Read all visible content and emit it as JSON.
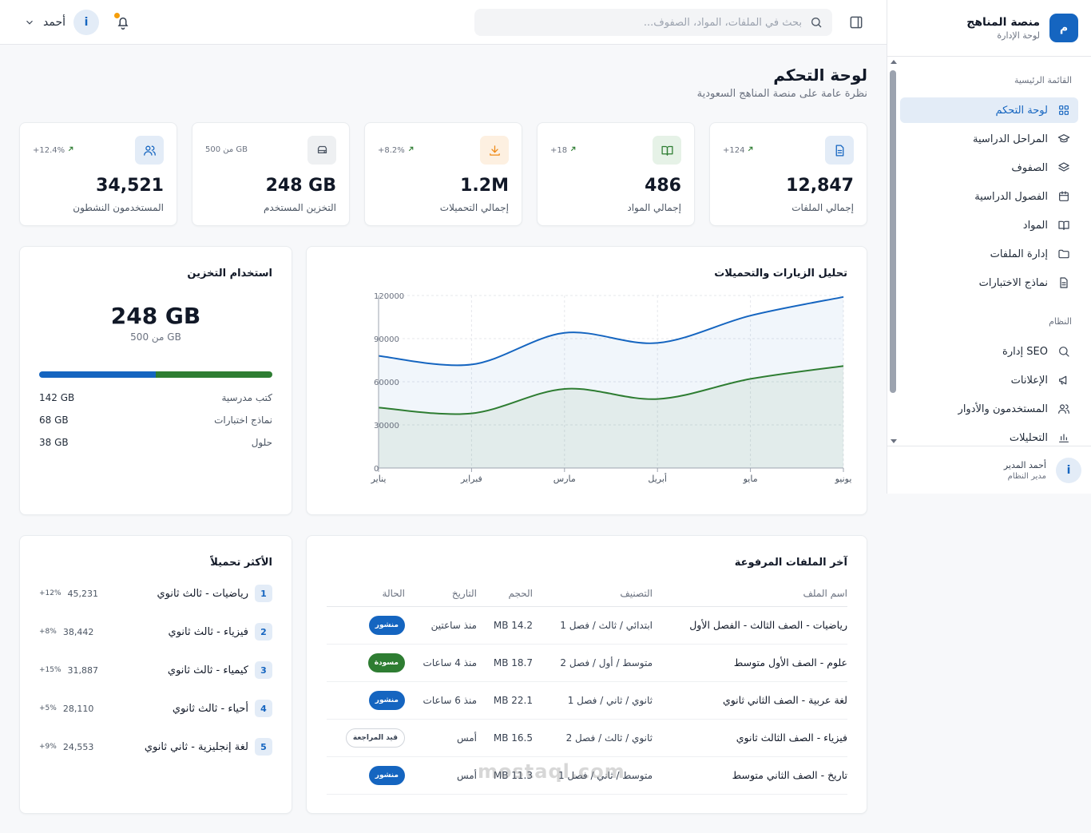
{
  "brand": {
    "logo": "م",
    "title": "منصة المناهج",
    "subtitle": "لوحة الإدارة"
  },
  "sidebar": {
    "section_main": "القائمة الرئيسية",
    "section_system": "النظام",
    "main_items": [
      {
        "label": "لوحة التحكم",
        "icon": "grid-icon",
        "active": true
      },
      {
        "label": "المراحل الدراسية",
        "icon": "graduation-cap-icon"
      },
      {
        "label": "الصفوف",
        "icon": "layers-icon"
      },
      {
        "label": "الفصول الدراسية",
        "icon": "calendar-icon"
      },
      {
        "label": "المواد",
        "icon": "book-icon"
      },
      {
        "label": "إدارة الملفات",
        "icon": "folder-icon"
      },
      {
        "label": "نماذج الاختبارات",
        "icon": "file-text-icon"
      }
    ],
    "system_items": [
      {
        "label": "إدارة SEO",
        "icon": "search-icon"
      },
      {
        "label": "الإعلانات",
        "icon": "megaphone-icon"
      },
      {
        "label": "المستخدمون والأدوار",
        "icon": "users-icon"
      },
      {
        "label": "التحليلات",
        "icon": "bar-chart-icon"
      }
    ],
    "user": {
      "avatar": "i",
      "name": "أحمد المدير",
      "role": "مدير النظام"
    }
  },
  "header": {
    "search_placeholder": "بحث في الملفات، المواد، الصفوف...",
    "user_name": "أحمد",
    "user_avatar": "i"
  },
  "page": {
    "title": "لوحة التحكم",
    "subtitle": "نظرة عامة على منصة المناهج السعودية"
  },
  "stats": [
    {
      "label": "إجمالي الملفات",
      "value": "12,847",
      "change": "+124",
      "icon": "file-icon",
      "color": "#1565c0",
      "bg": "#e3ecf7"
    },
    {
      "label": "إجمالي المواد",
      "value": "486",
      "change": "+18",
      "icon": "book-open-icon",
      "color": "#2e7d32",
      "bg": "#e6f2e7"
    },
    {
      "label": "إجمالي التحميلات",
      "value": "1.2M",
      "change": "+8.2%",
      "icon": "download-icon",
      "color": "#ef8a17",
      "bg": "#fdf0e1"
    },
    {
      "label": "التخزين المستخدم",
      "value": "248 GB",
      "change": "من 500 GB",
      "icon": "hard-drive-icon",
      "color": "#4b5563",
      "bg": "#eef0f2"
    },
    {
      "label": "المستخدمون النشطون",
      "value": "34,521",
      "change": "+12.4%",
      "icon": "users-icon",
      "color": "#1565c0",
      "bg": "#e3ecf7"
    }
  ],
  "storage": {
    "title": "استخدام التخزين",
    "used": "248 GB",
    "of": "من 500 GB",
    "used_fraction_primary": 0.5,
    "colors": {
      "primary": "#1565c0",
      "secondary": "#2e7d32"
    },
    "rows": [
      {
        "label": "كتب مدرسية",
        "size": "142 GB"
      },
      {
        "label": "نماذج اختبارات",
        "size": "68 GB"
      },
      {
        "label": "حلول",
        "size": "38 GB"
      }
    ]
  },
  "chart_data": {
    "type": "area",
    "title": "تحليل الزيارات والتحميلات",
    "categories": [
      "يناير",
      "فبراير",
      "مارس",
      "أبريل",
      "مايو",
      "يونيو"
    ],
    "ylim": [
      0,
      120000
    ],
    "yticks": [
      "0",
      "30000",
      "60000",
      "90000",
      "120000"
    ],
    "grid": true,
    "series": [
      {
        "values": [
          78000,
          72000,
          94000,
          87000,
          106000,
          119000
        ],
        "color": "#1565c0"
      },
      {
        "values": [
          42000,
          38000,
          55000,
          48000,
          62000,
          71000
        ],
        "color": "#2e7d32"
      }
    ]
  },
  "files": {
    "title": "آخر الملفات المرفوعة",
    "columns": [
      "اسم الملف",
      "التصنيف",
      "الحجم",
      "التاريخ",
      "الحالة"
    ],
    "rows": [
      {
        "name": "رياضيات - الصف الثالث - الفصل الأول",
        "category": "ابتدائي / ثالث / فصل 1",
        "size": "14.2 MB",
        "date": "منذ ساعتين",
        "status": "منشور",
        "kind": "pub"
      },
      {
        "name": "علوم - الصف الأول متوسط",
        "category": "متوسط / أول / فصل 2",
        "size": "18.7 MB",
        "date": "منذ 4 ساعات",
        "status": "مسودة",
        "kind": "draft"
      },
      {
        "name": "لغة عربية - الصف الثاني ثانوي",
        "category": "ثانوي / ثاني / فصل 1",
        "size": "22.1 MB",
        "date": "منذ 6 ساعات",
        "status": "منشور",
        "kind": "pub"
      },
      {
        "name": "فيزياء - الصف الثالث ثانوي",
        "category": "ثانوي / ثالث / فصل 2",
        "size": "16.5 MB",
        "date": "أمس",
        "status": "قيد المراجعة",
        "kind": "review"
      },
      {
        "name": "تاريخ - الصف الثاني متوسط",
        "category": "متوسط / ثاني / فصل 1",
        "size": "11.3 MB",
        "date": "أمس",
        "status": "منشور",
        "kind": "pub"
      }
    ]
  },
  "top": {
    "title": "الأكثر تحميلاً",
    "items": [
      {
        "rank": "1",
        "name": "رياضيات - ثالث ثانوي",
        "count": "45,231",
        "pct": "+12%"
      },
      {
        "rank": "2",
        "name": "فيزياء - ثالث ثانوي",
        "count": "38,442",
        "pct": "+8%"
      },
      {
        "rank": "3",
        "name": "كيمياء - ثالث ثانوي",
        "count": "31,887",
        "pct": "+15%"
      },
      {
        "rank": "4",
        "name": "أحياء - ثالث ثانوي",
        "count": "28,110",
        "pct": "+5%"
      },
      {
        "rank": "5",
        "name": "لغة إنجليزية - ثاني ثانوي",
        "count": "24,553",
        "pct": "+9%"
      }
    ]
  },
  "watermark": "mostaql.com"
}
